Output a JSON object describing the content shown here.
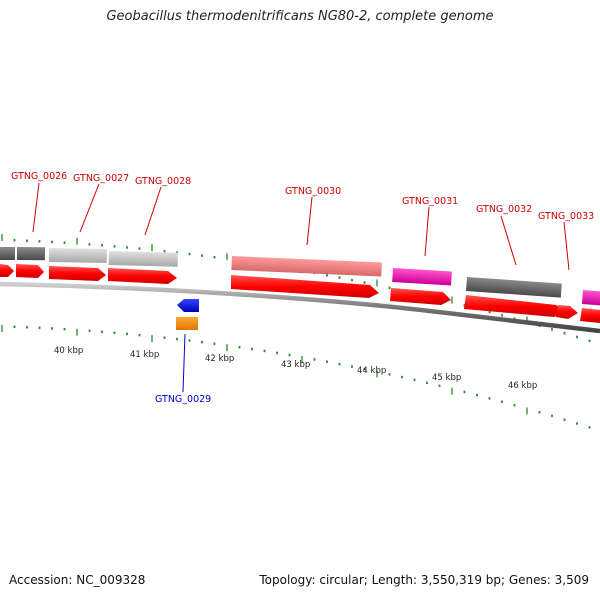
{
  "title": "Geobacillus thermodenitrificans NG80‑2, complete genome",
  "footer": {
    "accession": "Accession: NC_009328",
    "info": "Topology: circular; Length: 3,550,319 bp; Genes: 3,509"
  },
  "colors": {
    "red_label": "#cc0000",
    "blue_label": "#0000cc",
    "tick_green": "#2a8a2a",
    "cds_red": "#ff0000",
    "backbone": "#808080"
  },
  "scale_labels": [
    "40 kbp",
    "41 kbp",
    "42 kbp",
    "43 kbp",
    "44 kbp",
    "45 kbp",
    "46 kbp"
  ],
  "genes": [
    {
      "id": "GTNG_0026",
      "strand": "+"
    },
    {
      "id": "GTNG_0027",
      "strand": "+"
    },
    {
      "id": "GTNG_0028",
      "strand": "+"
    },
    {
      "id": "GTNG_0029",
      "strand": "-"
    },
    {
      "id": "GTNG_0030",
      "strand": "+"
    },
    {
      "id": "GTNG_0031",
      "strand": "+"
    },
    {
      "id": "GTNG_0032",
      "strand": "+"
    },
    {
      "id": "GTNG_0033",
      "strand": "+"
    }
  ]
}
